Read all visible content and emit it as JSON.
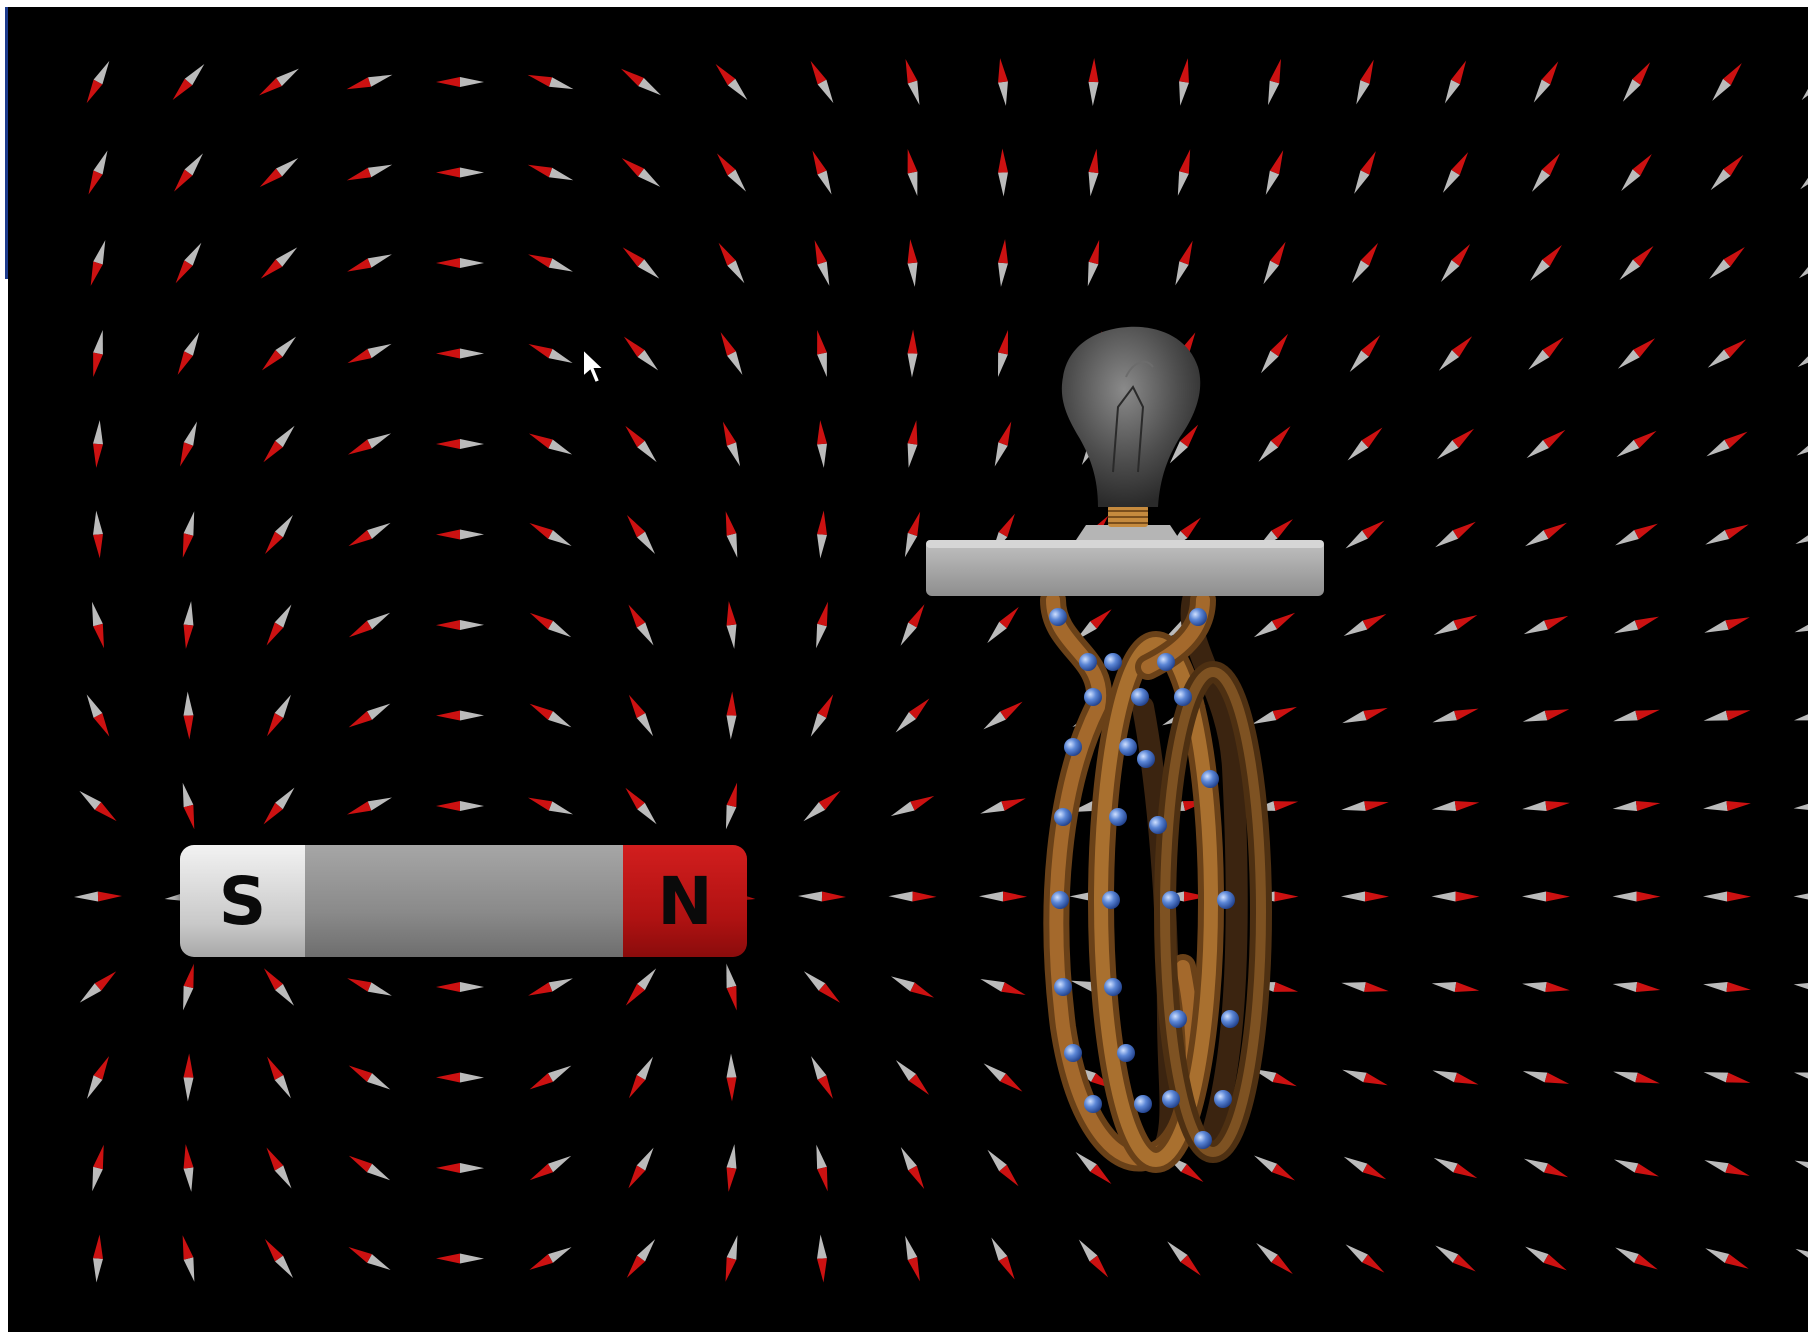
{
  "magnet": {
    "south_label": "S",
    "north_label": "N"
  },
  "colors": {
    "background": "#000000",
    "needle_north": "#cc1111",
    "needle_south": "#bbbbbb",
    "magnet_north": "#b01212",
    "magnet_south": "#d9d9d9",
    "magnet_body": "#8c8c8c",
    "coil": "#8a5a26",
    "electron": "#4a72c4",
    "bulb": "#555555",
    "bulb_base": "#9a9a9a"
  },
  "icons": [
    "compass-needle-icon",
    "light-bulb-icon",
    "arrow-cursor-icon"
  ]
}
